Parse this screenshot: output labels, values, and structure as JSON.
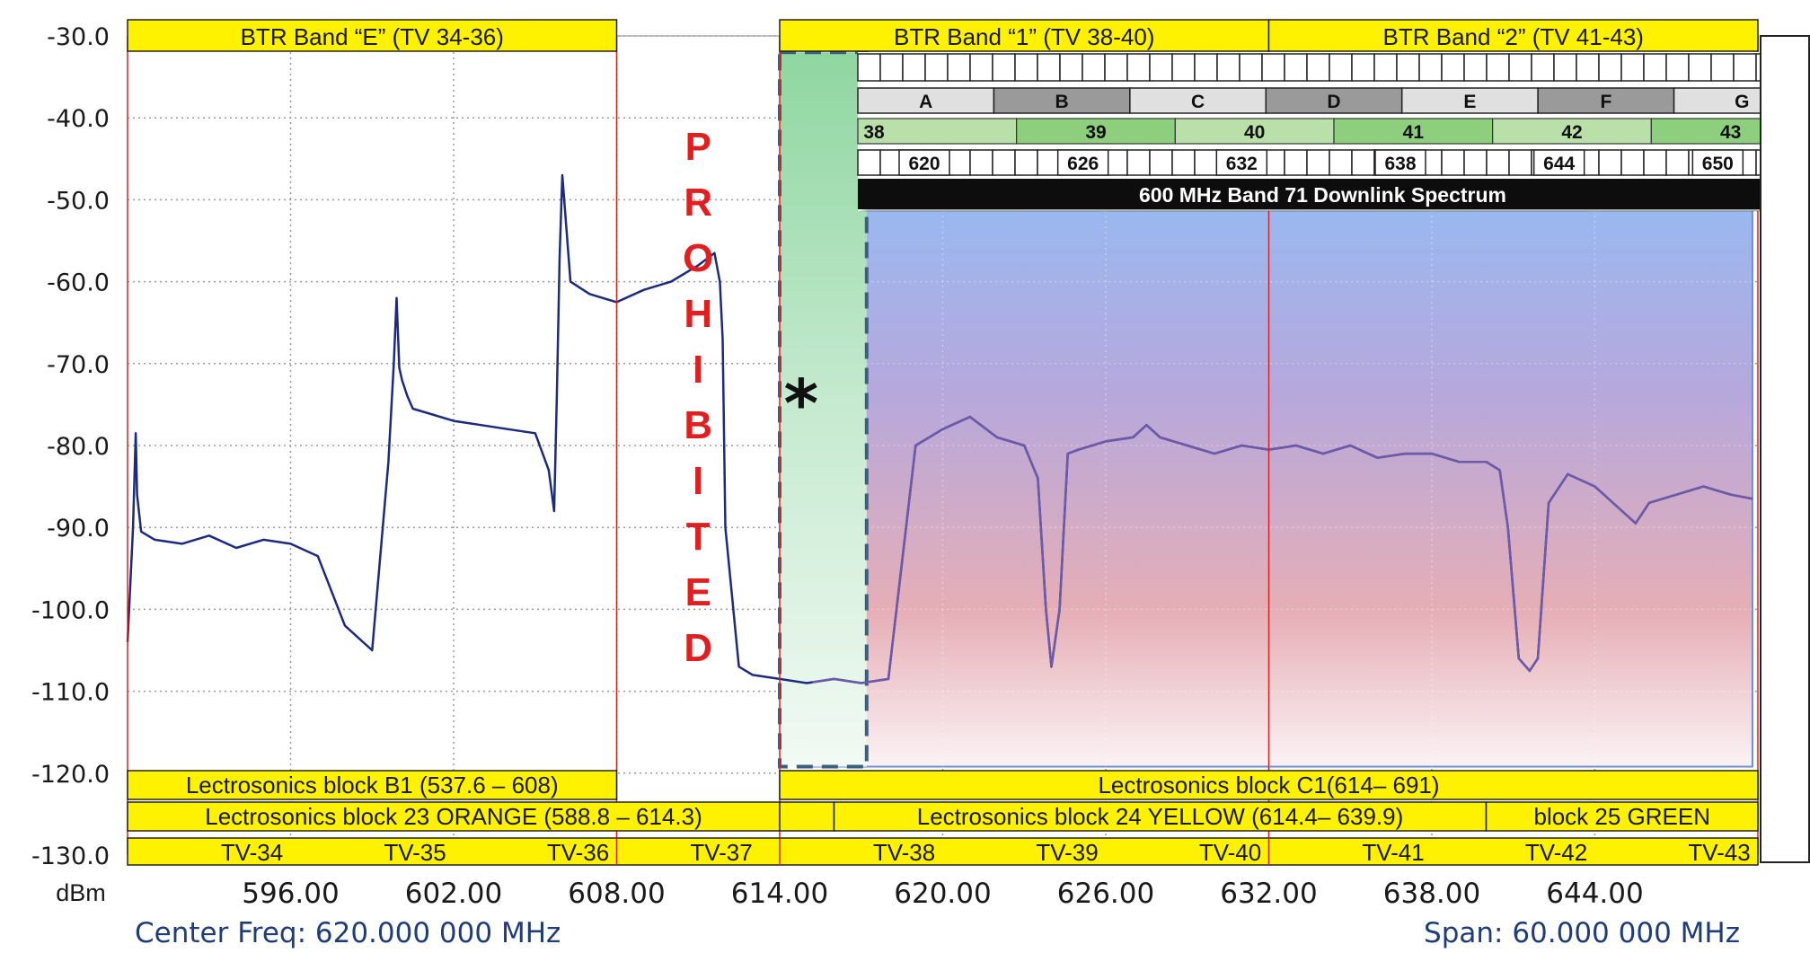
{
  "chart_data": {
    "type": "line",
    "ylabel": "dBm",
    "ylim": [
      -130,
      -30
    ],
    "xlim": [
      590,
      650
    ],
    "y_ticks": [
      "-30.0",
      "-40.0",
      "-50.0",
      "-60.0",
      "-70.0",
      "-80.0",
      "-90.0",
      "-100.0",
      "-110.0",
      "-120.0",
      "-130.0"
    ],
    "x_ticks": [
      {
        "value": 596,
        "label": "596.00"
      },
      {
        "value": 602,
        "label": "602.00"
      },
      {
        "value": 608,
        "label": "608.00"
      },
      {
        "value": 614,
        "label": "614.00"
      },
      {
        "value": 620,
        "label": "620.00"
      },
      {
        "value": 626,
        "label": "626.00"
      },
      {
        "value": 632,
        "label": "632.00"
      },
      {
        "value": 638,
        "label": "638.00"
      },
      {
        "value": 644,
        "label": "644.00"
      }
    ],
    "grid": true,
    "center_freq": "Center Freq: 620.000 000 MHz",
    "span": "Span: 60.000 000 MHz",
    "series": [
      {
        "color": "#1c2a80",
        "x": [
          590.0,
          590.2,
          590.3,
          590.35,
          590.5,
          591.0,
          592.0,
          593.0,
          594.0,
          595.0,
          596.0,
          597.0,
          598.0,
          599.0,
          599.6,
          599.8,
          599.9,
          600.0,
          600.1,
          600.3,
          600.5,
          601.0,
          602.0,
          603.0,
          604.0,
          605.0,
          605.5,
          605.7,
          605.8,
          605.9,
          606.0,
          606.3,
          607.0,
          608.0,
          609.0,
          610.0,
          611.0,
          611.6,
          611.8,
          611.9,
          612.0,
          612.5,
          613.0,
          614.0,
          615.0,
          616.0,
          617.0,
          618.0,
          619.0,
          620.0,
          621.0,
          622.0,
          623.0,
          623.5,
          623.8,
          624.0,
          624.3,
          624.6,
          625.0,
          626.0,
          627.0,
          627.5,
          628.0,
          629.0,
          630.0,
          631.0,
          632.0,
          633.0,
          634.0,
          635.0,
          636.0,
          637.0,
          638.0,
          639.0,
          640.0,
          640.5,
          640.8,
          641.2,
          641.6,
          641.9,
          642.3,
          643.0,
          644.0,
          645.0,
          645.5,
          646.0,
          647.0,
          648.0,
          649.0,
          649.8
        ],
        "y": [
          -104.0,
          -90.0,
          -78.5,
          -86.0,
          -90.5,
          -91.5,
          -92.0,
          -91.0,
          -92.5,
          -91.5,
          -92.0,
          -93.5,
          -102.0,
          -105.0,
          -82.0,
          -70.0,
          -62.0,
          -70.5,
          -72.0,
          -74.0,
          -75.5,
          -76.0,
          -77.0,
          -77.5,
          -78.0,
          -78.5,
          -83.0,
          -88.0,
          -74.0,
          -57.0,
          -47.0,
          -60.0,
          -61.5,
          -62.5,
          -61.0,
          -60.0,
          -58.0,
          -56.5,
          -60.0,
          -67.0,
          -90.0,
          -107.0,
          -108.0,
          -108.5,
          -109.0,
          -108.5,
          -109.0,
          -108.5,
          -80.0,
          -78.0,
          -76.5,
          -79.0,
          -80.0,
          -84.0,
          -100.0,
          -107.0,
          -100.0,
          -81.0,
          -80.5,
          -79.5,
          -79.0,
          -77.5,
          -79.0,
          -80.0,
          -81.0,
          -80.0,
          -80.5,
          -80.0,
          -81.0,
          -80.0,
          -81.5,
          -81.0,
          -81.0,
          -82.0,
          -82.0,
          -83.0,
          -90.0,
          -106.0,
          -107.5,
          -106.0,
          -87.0,
          -83.5,
          -85.0,
          -88.0,
          -89.5,
          -87.0,
          -86.0,
          -85.0,
          -86.0,
          -86.5
        ]
      }
    ],
    "bands_top": [
      {
        "label": "BTR Band “E” (TV 34-36)",
        "x0": 590,
        "x1": 608
      },
      {
        "label": "BTR Band “1” (TV 38-40)",
        "x0": 614,
        "x1": 632
      },
      {
        "label": "BTR Band “2” (TV 41-43)",
        "x0": 632,
        "x1": 650
      }
    ],
    "lectro_row1": [
      {
        "label": "Lectrosonics block B1 (537.6 – 608)",
        "x0": 590,
        "x1": 608
      },
      {
        "label": "Lectrosonics block C1(614– 691)",
        "x0": 614,
        "x1": 650
      }
    ],
    "lectro_row2": [
      {
        "label": "Lectrosonics block 23 ORANGE (588.8 – 614.3)",
        "x0": 590,
        "x1": 614
      },
      {
        "label": "",
        "x0": 614,
        "x1": 616
      },
      {
        "label": "Lectrosonics block 24 YELLOW (614.4– 639.9)",
        "x0": 616,
        "x1": 640
      },
      {
        "label": "block 25 GREEN",
        "x0": 640,
        "x1": 650
      }
    ],
    "tv_row": [
      {
        "label": "TV-34",
        "x0": 590,
        "x1": 608
      },
      {
        "label": "TV-35",
        "x0": 590,
        "x1": 608
      },
      {
        "label": "TV-36",
        "x0": 590,
        "x1": 608
      },
      {
        "label": "TV-37",
        "x0": 608,
        "x1": 614
      },
      {
        "label": "TV-38",
        "x0": 614,
        "x1": 632
      },
      {
        "label": "TV-39",
        "x0": 614,
        "x1": 632
      },
      {
        "label": "TV-40",
        "x0": 614,
        "x1": 632
      },
      {
        "label": "TV-41",
        "x0": 632,
        "x1": 650
      },
      {
        "label": "TV-42",
        "x0": 632,
        "x1": 650
      },
      {
        "label": "TV-43",
        "x0": 632,
        "x1": 650
      }
    ],
    "tv_label_x": [
      596,
      602,
      608,
      614,
      620,
      626,
      632,
      638,
      644,
      650
    ],
    "prohibited_letters": [
      "P",
      "R",
      "O",
      "H",
      "I",
      "B",
      "I",
      "T",
      "E",
      "D"
    ],
    "asterisk": "*",
    "inset": {
      "title": "600 MHz Band 71 Downlink Spectrum",
      "blocks": [
        "A",
        "B",
        "C",
        "D",
        "E",
        "F",
        "G"
      ],
      "channels": [
        "38",
        "39",
        "40",
        "41",
        "42",
        "43"
      ],
      "freqs": [
        "620",
        "626",
        "632",
        "638",
        "644",
        "650"
      ]
    }
  }
}
